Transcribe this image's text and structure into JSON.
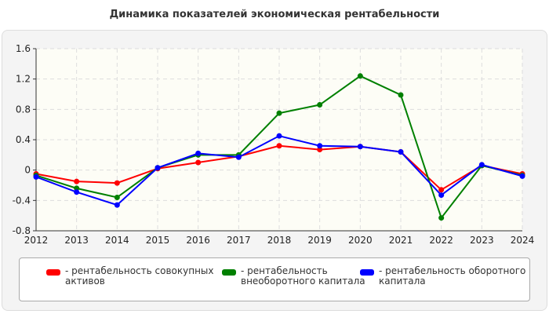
{
  "chart_data": {
    "type": "line",
    "title": "Динамика показателей экономическая рентабельности",
    "categories": [
      "2012",
      "2013",
      "2014",
      "2015",
      "2016",
      "2017",
      "2018",
      "2019",
      "2020",
      "2021",
      "2022",
      "2023",
      "2024"
    ],
    "ylim": [
      -0.8,
      1.6
    ],
    "yticks": [
      "1.6",
      "1.2",
      "0.8",
      "0.4",
      "0",
      "-0.4",
      "-0.8"
    ],
    "grid": true,
    "legend_position": "bottom",
    "series": [
      {
        "name": "- рентабельность совокупных активов",
        "color": "#ff0000",
        "values": [
          -0.05,
          -0.15,
          -0.17,
          0.02,
          0.1,
          0.18,
          0.32,
          0.27,
          0.31,
          0.24,
          -0.26,
          0.06,
          -0.05
        ]
      },
      {
        "name": "- рентабельность внеоборотного капитала",
        "color": "#008000",
        "values": [
          -0.07,
          -0.24,
          -0.36,
          0.03,
          0.2,
          0.2,
          0.75,
          0.86,
          1.24,
          0.99,
          -0.63,
          0.06,
          -0.07
        ]
      },
      {
        "name": "- рентабельность оборотного капитала",
        "color": "#0000ff",
        "values": [
          -0.09,
          -0.29,
          -0.46,
          0.03,
          0.22,
          0.17,
          0.45,
          0.32,
          0.31,
          0.24,
          -0.33,
          0.07,
          -0.08
        ]
      }
    ]
  }
}
